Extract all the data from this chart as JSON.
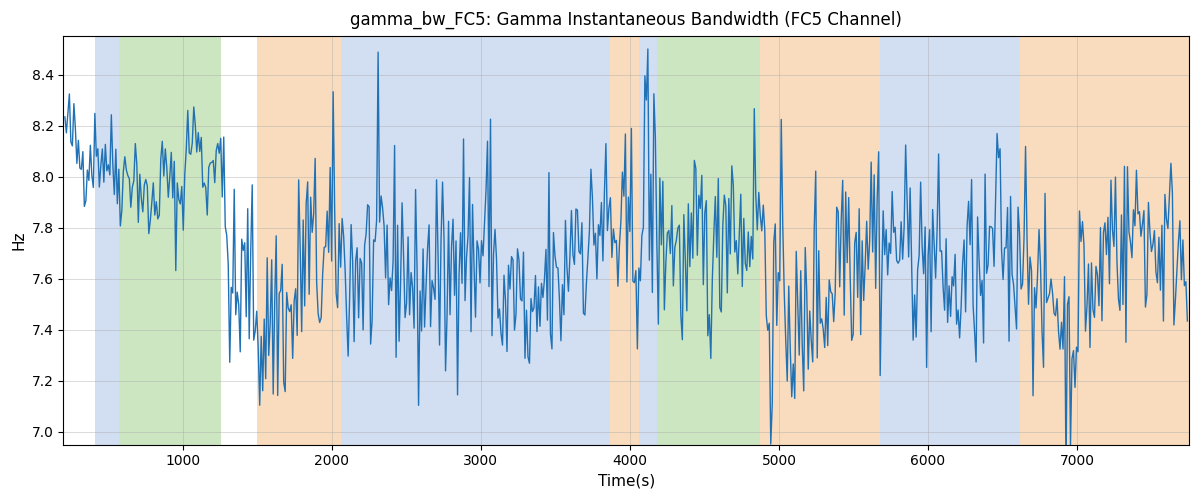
{
  "title": "gamma_bw_FC5: Gamma Instantaneous Bandwidth (FC5 Channel)",
  "xlabel": "Time(s)",
  "ylabel": "Hz",
  "xlim": [
    200,
    7750
  ],
  "ylim": [
    6.95,
    8.55
  ],
  "yticks": [
    7.0,
    7.2,
    7.4,
    7.6,
    7.8,
    8.0,
    8.2,
    8.4
  ],
  "xticks": [
    1000,
    2000,
    3000,
    4000,
    5000,
    6000,
    7000
  ],
  "line_color": "#2171b5",
  "line_width": 1.0,
  "background_color": "#ffffff",
  "grid_color": "#aaaaaa",
  "colored_bands": [
    {
      "xmin": 410,
      "xmax": 570,
      "color": "#aec6e8",
      "alpha": 0.55
    },
    {
      "xmin": 570,
      "xmax": 1260,
      "color": "#90c978",
      "alpha": 0.45
    },
    {
      "xmin": 1500,
      "xmax": 2060,
      "color": "#f5c08a",
      "alpha": 0.55
    },
    {
      "xmin": 2060,
      "xmax": 3870,
      "color": "#aec6e8",
      "alpha": 0.55
    },
    {
      "xmin": 3870,
      "xmax": 4060,
      "color": "#f5c08a",
      "alpha": 0.55
    },
    {
      "xmin": 4060,
      "xmax": 4180,
      "color": "#aec6e8",
      "alpha": 0.55
    },
    {
      "xmin": 4180,
      "xmax": 4870,
      "color": "#90c978",
      "alpha": 0.45
    },
    {
      "xmin": 4870,
      "xmax": 5680,
      "color": "#f5c08a",
      "alpha": 0.55
    },
    {
      "xmin": 5680,
      "xmax": 6620,
      "color": "#aec6e8",
      "alpha": 0.55
    },
    {
      "xmin": 6620,
      "xmax": 7750,
      "color": "#f5c08a",
      "alpha": 0.55
    }
  ],
  "seed": 42,
  "n_points": 750,
  "t_start": 210,
  "t_end": 7740
}
